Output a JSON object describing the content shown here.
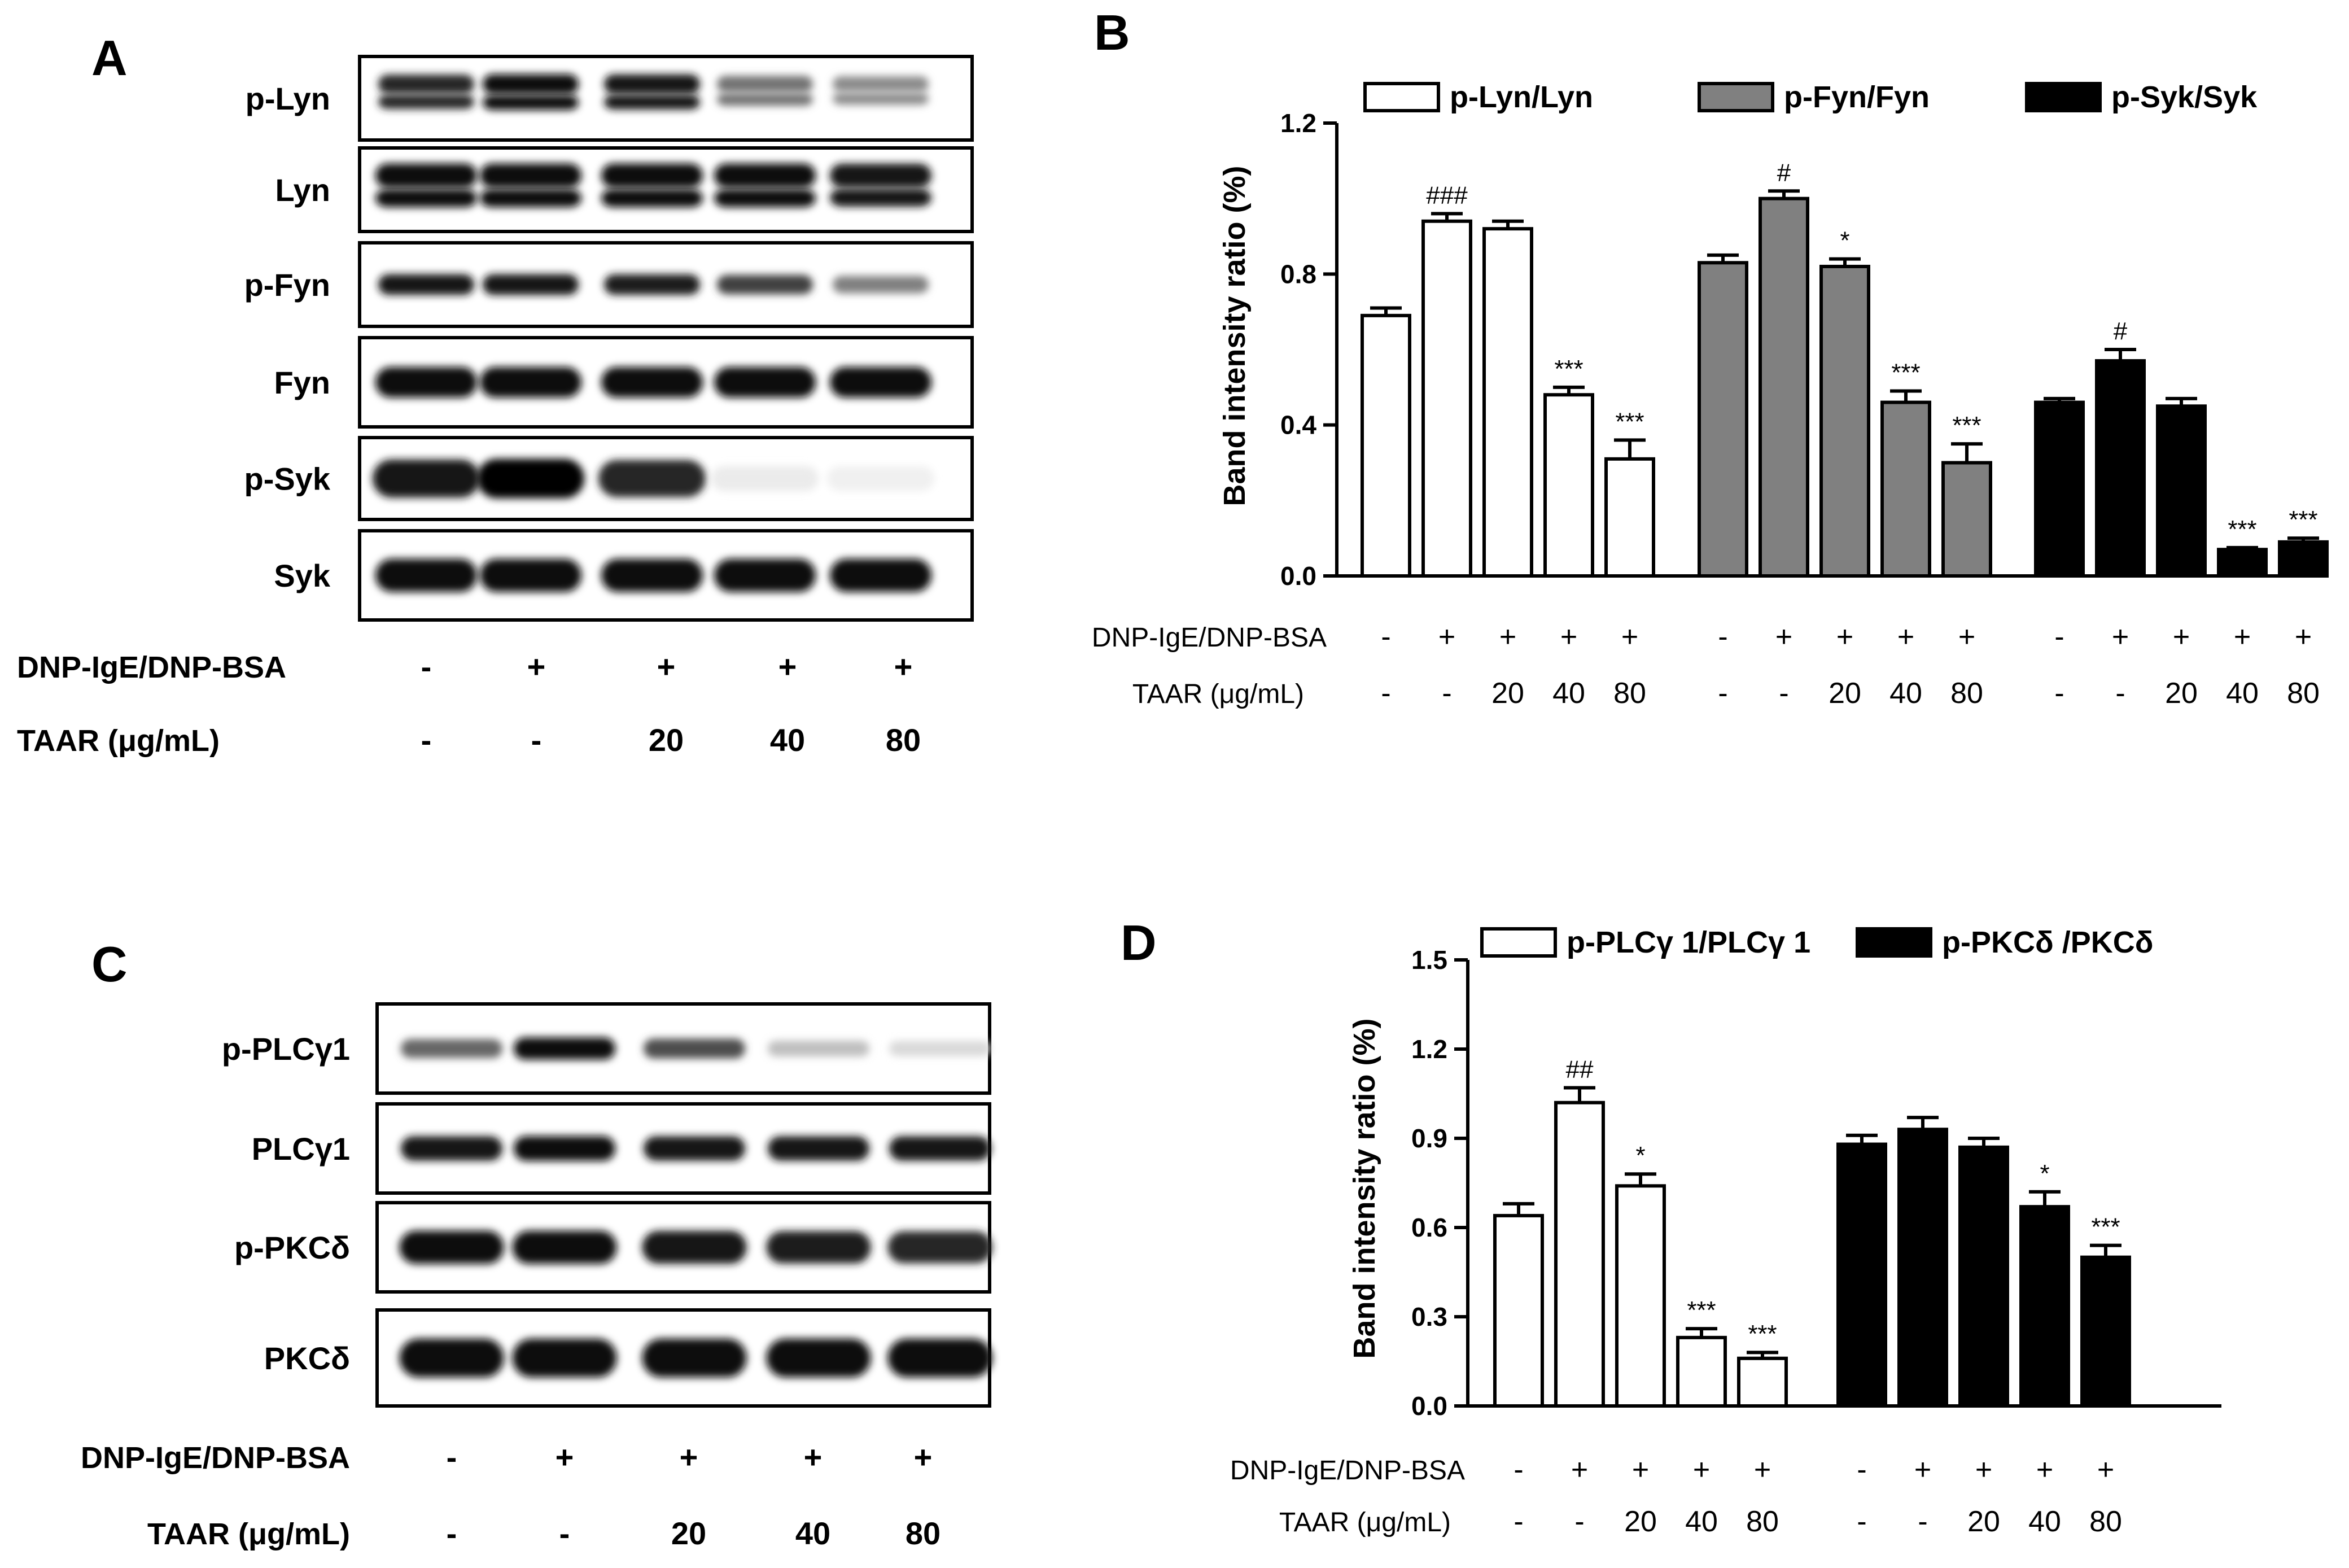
{
  "panels": {
    "A": "A",
    "B": "B",
    "C": "C",
    "D": "D"
  },
  "panelA": {
    "rows": [
      "p-Lyn",
      "Lyn",
      "p-Fyn",
      "Fyn",
      "p-Syk",
      "Syk"
    ],
    "conditions": [
      {
        "label": "DNP-IgE/DNP-BSA",
        "values": [
          "-",
          "+",
          "+",
          "+",
          "+"
        ]
      },
      {
        "label": "TAAR (μg/mL)",
        "values": [
          "-",
          "-",
          "20",
          "40",
          "80"
        ]
      }
    ]
  },
  "panelC": {
    "rows": [
      "p-PLCγ1",
      "PLCγ1",
      "p-PKCδ",
      "PKCδ"
    ],
    "conditions": [
      {
        "label": "DNP-IgE/DNP-BSA",
        "values": [
          "-",
          "+",
          "+",
          "+",
          "+"
        ]
      },
      {
        "label": "TAAR (μg/mL)",
        "values": [
          "-",
          "-",
          "20",
          "40",
          "80"
        ]
      }
    ]
  },
  "chart_data": [
    {
      "panel": "B",
      "type": "bar",
      "ylabel": "Band intensity ratio (%)",
      "ylim": [
        0,
        1.2
      ],
      "yticks": [
        "0.0",
        "0.4",
        "0.8",
        "1.2"
      ],
      "legend_position": "top",
      "series": [
        {
          "name": "p-Lyn/Lyn",
          "color": "#ffffff",
          "values": [
            0.69,
            0.94,
            0.92,
            0.48,
            0.31
          ],
          "errors": [
            0.02,
            0.02,
            0.02,
            0.02,
            0.05
          ],
          "sig": [
            "",
            "###",
            "",
            "***",
            "***"
          ]
        },
        {
          "name": "p-Fyn/Fyn",
          "color": "#808080",
          "values": [
            0.83,
            1.0,
            0.82,
            0.46,
            0.3
          ],
          "errors": [
            0.02,
            0.02,
            0.02,
            0.03,
            0.05
          ],
          "sig": [
            "",
            "#",
            "*",
            "***",
            "***"
          ]
        },
        {
          "name": "p-Syk/Syk",
          "color": "#000000",
          "values": [
            0.46,
            0.57,
            0.45,
            0.07,
            0.09
          ],
          "errors": [
            0.01,
            0.03,
            0.02,
            0.005,
            0.01
          ],
          "sig": [
            "",
            "#",
            "",
            "***",
            "***"
          ]
        }
      ],
      "conditions": [
        {
          "label": "DNP-IgE/DNP-BSA",
          "values": [
            "-",
            "+",
            "+",
            "+",
            "+"
          ]
        },
        {
          "label": "TAAR (μg/mL)",
          "values": [
            "-",
            "-",
            "20",
            "40",
            "80"
          ]
        }
      ]
    },
    {
      "panel": "D",
      "type": "bar",
      "ylabel": "Band intensity ratio (%)",
      "ylim": [
        0,
        1.5
      ],
      "yticks": [
        "0.0",
        "0.3",
        "0.6",
        "0.9",
        "1.2",
        "1.5"
      ],
      "legend_position": "top",
      "series": [
        {
          "name": "p-PLCγ 1/PLCγ 1",
          "color": "#ffffff",
          "values": [
            0.64,
            1.02,
            0.74,
            0.23,
            0.16
          ],
          "errors": [
            0.04,
            0.05,
            0.04,
            0.03,
            0.02
          ],
          "sig": [
            "",
            "##",
            "*",
            "***",
            "***"
          ]
        },
        {
          "name": "p-PKCδ /PKCδ",
          "color": "#000000",
          "values": [
            0.88,
            0.93,
            0.87,
            0.67,
            0.5
          ],
          "errors": [
            0.03,
            0.04,
            0.03,
            0.05,
            0.04
          ],
          "sig": [
            "",
            "",
            "",
            "*",
            "***"
          ]
        }
      ],
      "conditions": [
        {
          "label": "DNP-IgE/DNP-BSA",
          "values": [
            "-",
            "+",
            "+",
            "+",
            "+"
          ]
        },
        {
          "label": "TAAR (μg/mL)",
          "values": [
            "-",
            "-",
            "20",
            "40",
            "80"
          ]
        }
      ]
    }
  ]
}
